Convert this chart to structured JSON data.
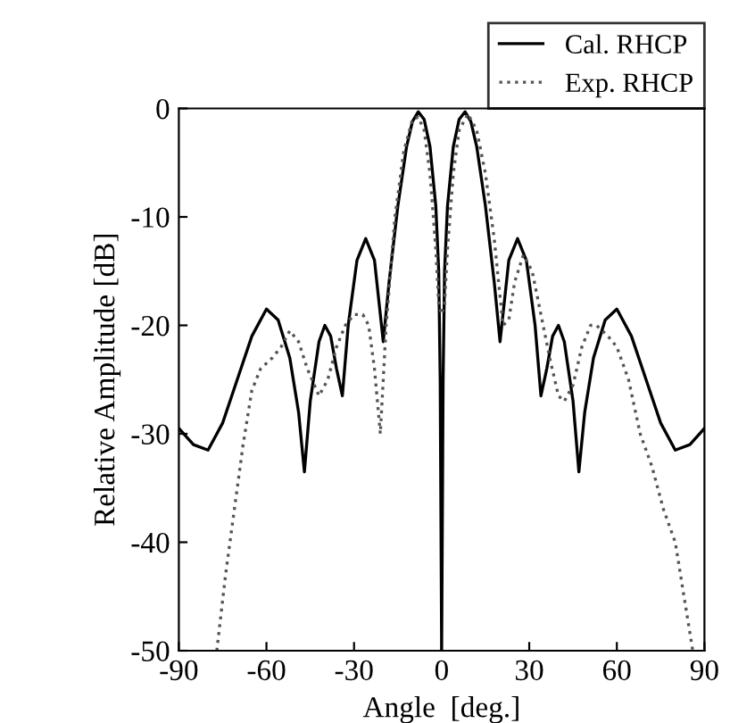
{
  "chart_data": {
    "type": "line",
    "xlabel": "Angle  [deg.]",
    "ylabel": "Relative Amplitude [dB]",
    "xlim": [
      -90,
      90
    ],
    "xticks": [
      -90,
      -60,
      -30,
      0,
      30,
      60,
      90
    ],
    "ylim": [
      -50,
      0
    ],
    "yticks": [
      -50,
      -40,
      -30,
      -20,
      -10,
      0
    ],
    "grid": false,
    "legend": "top right",
    "series": [
      {
        "name": "Cal. RHCP",
        "color": "#000000",
        "line_style": "solid",
        "x": [
          -90,
          -85,
          -80,
          -75,
          -70,
          -65,
          -60,
          -56,
          -52,
          -49,
          -47,
          -45,
          -42,
          -40,
          -38,
          -36,
          -34,
          -32,
          -29,
          -26,
          -23,
          -21,
          -20,
          -18,
          -15,
          -12,
          -10,
          -8,
          -6,
          -4,
          -2,
          -1,
          -0.5,
          0,
          0.5,
          1,
          2,
          4,
          6,
          8,
          10,
          12,
          15,
          18,
          20,
          21,
          23,
          26,
          29,
          32,
          34,
          36,
          38,
          40,
          42,
          45,
          47,
          49,
          52,
          56,
          60,
          65,
          70,
          75,
          80,
          85,
          90
        ],
        "values": [
          -29.5,
          -31,
          -31.5,
          -29,
          -25,
          -21,
          -18.5,
          -19.5,
          -23,
          -28,
          -33.5,
          -27,
          -21.5,
          -20,
          -21,
          -24,
          -26.5,
          -20,
          -14,
          -12,
          -14,
          -19,
          -21.5,
          -16,
          -9,
          -3.5,
          -1.2,
          -0.3,
          -1,
          -3.5,
          -9,
          -15,
          -25,
          -50,
          -25,
          -15,
          -9,
          -3.5,
          -1,
          -0.3,
          -1.2,
          -3.5,
          -9,
          -16,
          -21.5,
          -19,
          -14,
          -12,
          -14,
          -20,
          -26.5,
          -24,
          -21,
          -20,
          -21.5,
          -27,
          -33.5,
          -28,
          -23,
          -19.5,
          -18.5,
          -21,
          -25,
          -29,
          -31.5,
          -31,
          -29.5
        ]
      },
      {
        "name": "Exp. RHCP",
        "color": "#555555",
        "line_style": "dotted",
        "x": [
          -77,
          -74,
          -71,
          -68,
          -65,
          -62,
          -58,
          -55,
          -52,
          -49,
          -46,
          -42,
          -39,
          -36,
          -33,
          -30,
          -27,
          -25,
          -23,
          -21,
          -19,
          -16,
          -13,
          -10,
          -8,
          -6,
          -4,
          -2,
          -1,
          0,
          1,
          2,
          4,
          6,
          9,
          12,
          15,
          18,
          21,
          23,
          25,
          28,
          31,
          34,
          37,
          40,
          42,
          45,
          48,
          51,
          53,
          57,
          60,
          64,
          68,
          72,
          76,
          80,
          83,
          86
        ],
        "values": [
          -50,
          -43,
          -37,
          -31,
          -26,
          -24,
          -23,
          -22,
          -20.5,
          -21.5,
          -24,
          -26.5,
          -25,
          -22,
          -20,
          -19,
          -19,
          -20,
          -24,
          -30,
          -20,
          -10,
          -4,
          -1,
          -0.8,
          -2,
          -6,
          -13,
          -18,
          -19,
          -18,
          -13,
          -6,
          -2,
          -0.5,
          -2,
          -6,
          -12,
          -20,
          -19.5,
          -16,
          -13.5,
          -15,
          -19,
          -23,
          -26.5,
          -27,
          -25.5,
          -22,
          -20,
          -20,
          -21,
          -22,
          -25,
          -30,
          -33,
          -37,
          -40,
          -45,
          -50
        ]
      }
    ]
  }
}
